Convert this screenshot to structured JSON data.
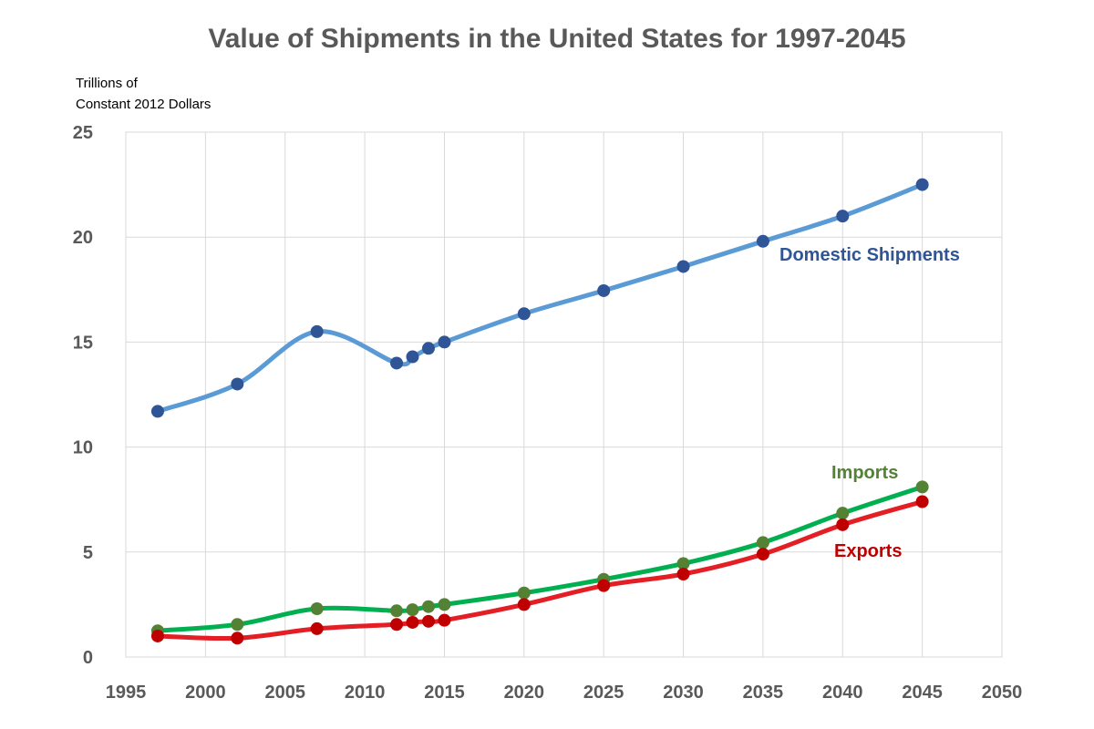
{
  "chart_data": {
    "type": "line",
    "title": "Value of Shipments in the United States for 1997-2045",
    "ylabel": [
      "Trillions of",
      "Constant 2012 Dollars"
    ],
    "xlabel": "",
    "xlim": [
      1995,
      2050
    ],
    "ylim": [
      0,
      25
    ],
    "x_ticks": [
      1995,
      2000,
      2005,
      2010,
      2015,
      2020,
      2025,
      2030,
      2035,
      2040,
      2045,
      2050
    ],
    "y_ticks": [
      0,
      5,
      10,
      15,
      20,
      25
    ],
    "grid": true,
    "legend": "none",
    "x": [
      1997,
      2002,
      2007,
      2012,
      2013,
      2014,
      2015,
      2020,
      2025,
      2030,
      2035,
      2040,
      2045
    ],
    "series": [
      {
        "key": "domestic",
        "name": "Domestic Shipments",
        "line_color": "#5b9bd5",
        "marker_color": "#2f5597",
        "label_color": "#2f5597",
        "values": [
          11.7,
          13.0,
          15.5,
          14.0,
          14.3,
          14.7,
          15.0,
          16.35,
          17.45,
          18.6,
          19.8,
          21.0,
          22.5
        ]
      },
      {
        "key": "imports",
        "name": "Imports",
        "line_color": "#00b050",
        "marker_color": "#548235",
        "label_color": "#548235",
        "values": [
          1.25,
          1.55,
          2.3,
          2.2,
          2.25,
          2.4,
          2.5,
          3.05,
          3.7,
          4.45,
          5.45,
          6.85,
          8.1
        ]
      },
      {
        "key": "exports",
        "name": "Exports",
        "line_color": "#e31e24",
        "marker_color": "#c00000",
        "label_color": "#c00000",
        "values": [
          1.0,
          0.9,
          1.35,
          1.55,
          1.65,
          1.7,
          1.75,
          2.5,
          3.4,
          3.95,
          4.9,
          6.3,
          7.4
        ]
      }
    ]
  }
}
